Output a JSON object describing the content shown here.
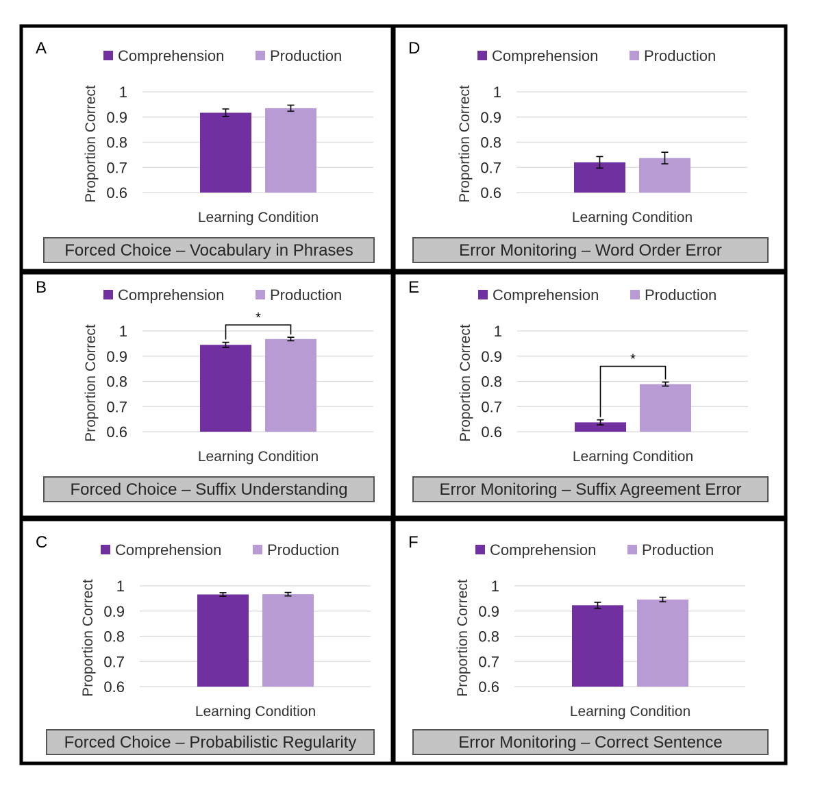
{
  "figure": {
    "legend": [
      "Comprehension",
      "Production"
    ],
    "colors": {
      "Comprehension": "#7030a0",
      "Production": "#b89ad4"
    },
    "ylabel": "Proportion Correct",
    "xlabel": "Learning Condition",
    "yticks": [
      "1",
      "0.9",
      "0.8",
      "0.7",
      "0.6"
    ]
  },
  "chart_data": [
    {
      "panel": "A",
      "type": "bar",
      "title": "Forced Choice – Vocabulary in Phrases",
      "categories": [
        "Comprehension",
        "Production"
      ],
      "values": [
        0.917,
        0.935
      ],
      "errors": [
        0.015,
        0.012
      ],
      "ylim": [
        0.6,
        1.0
      ],
      "xlabel": "Learning Condition",
      "ylabel": "Proportion Correct",
      "significance": null
    },
    {
      "panel": "B",
      "type": "bar",
      "title": "Forced Choice – Suffix Understanding",
      "categories": [
        "Comprehension",
        "Production"
      ],
      "values": [
        0.945,
        0.968
      ],
      "errors": [
        0.01,
        0.007
      ],
      "ylim": [
        0.6,
        1.0
      ],
      "xlabel": "Learning Condition",
      "ylabel": "Proportion Correct",
      "significance": "*"
    },
    {
      "panel": "C",
      "type": "bar",
      "title": "Forced Choice – Probabilistic Regularity",
      "categories": [
        "Comprehension",
        "Production"
      ],
      "values": [
        0.966,
        0.967
      ],
      "errors": [
        0.007,
        0.007
      ],
      "ylim": [
        0.6,
        1.0
      ],
      "xlabel": "Learning Condition",
      "ylabel": "Proportion Correct",
      "significance": null
    },
    {
      "panel": "D",
      "type": "bar",
      "title": "Error Monitoring – Word Order Error",
      "categories": [
        "Comprehension",
        "Production"
      ],
      "values": [
        0.72,
        0.737
      ],
      "errors": [
        0.023,
        0.023
      ],
      "ylim": [
        0.6,
        1.0
      ],
      "xlabel": "Learning Condition",
      "ylabel": "Proportion Correct",
      "significance": null
    },
    {
      "panel": "E",
      "type": "bar",
      "title": "Error Monitoring – Suffix Agreement Error",
      "categories": [
        "Comprehension",
        "Production"
      ],
      "values": [
        0.637,
        0.789
      ],
      "errors": [
        0.01,
        0.008
      ],
      "ylim": [
        0.6,
        1.0
      ],
      "xlabel": "Learning Condition",
      "ylabel": "Proportion Correct",
      "significance": "*"
    },
    {
      "panel": "F",
      "type": "bar",
      "title": "Error Monitoring – Correct Sentence",
      "categories": [
        "Comprehension",
        "Production"
      ],
      "values": [
        0.923,
        0.946
      ],
      "errors": [
        0.012,
        0.009
      ],
      "ylim": [
        0.6,
        1.0
      ],
      "xlabel": "Learning Condition",
      "ylabel": "Proportion Correct",
      "significance": null
    }
  ]
}
